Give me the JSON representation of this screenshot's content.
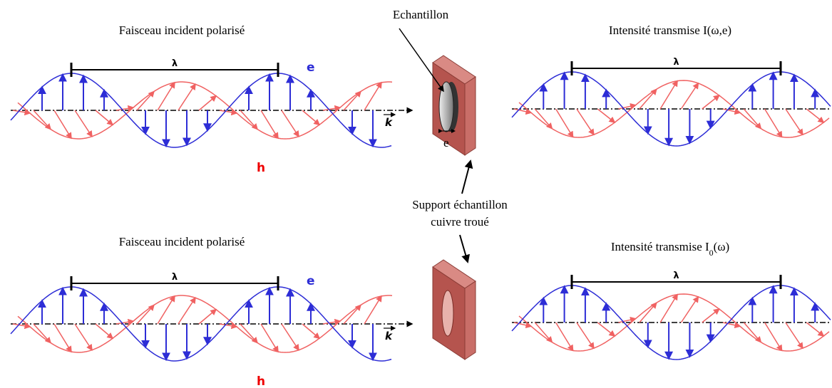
{
  "top": {
    "incident_title": "Faisceau incident polarisé",
    "lambda_in": "λ",
    "e_label": "e",
    "h_label": "h",
    "k_label": "k",
    "sample": "Echantillon",
    "thickness": "e",
    "transmitted_title": "Intensité transmise I(ω,e)",
    "lambda_out": "λ"
  },
  "support": [
    "Support échantillon",
    "cuivre troué"
  ],
  "bottom": {
    "incident_title": "Faisceau incident polarisé",
    "lambda_in": "λ",
    "e_label": "e",
    "h_label": "h",
    "k_label": "k",
    "transmitted_title": "Intensité transmise I",
    "transmitted_sub": "0",
    "transmitted_tail": "(ω)",
    "lambda_out": "λ"
  }
}
